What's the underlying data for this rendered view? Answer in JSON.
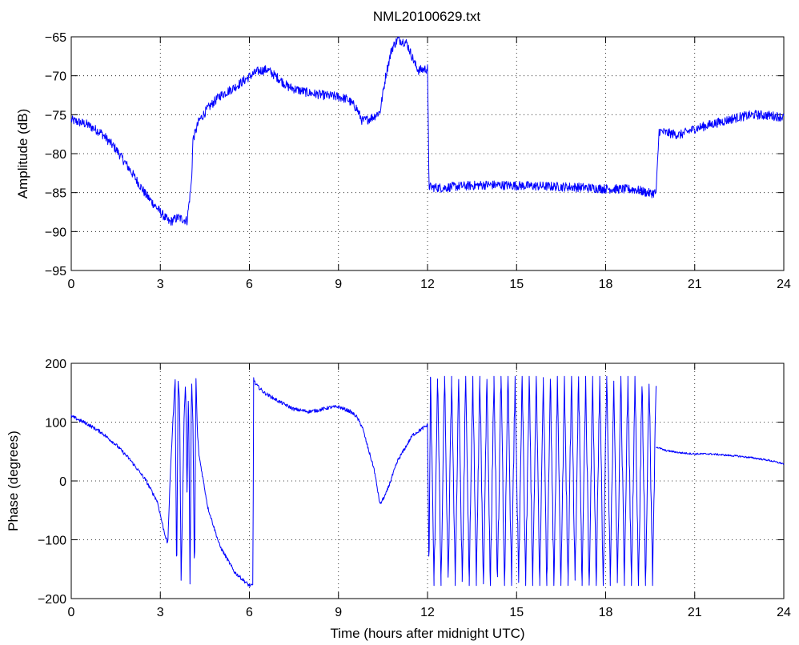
{
  "figure": {
    "title": "NML20100629.txt"
  },
  "colors": {
    "series": "#0000ff",
    "axes": "#000000",
    "background": "#ffffff"
  },
  "chart_data": [
    {
      "type": "line",
      "title": "NML20100629.txt",
      "xlabel": "",
      "ylabel": "Amplitude (dB)",
      "xlim": [
        0,
        24
      ],
      "ylim": [
        -95,
        -65
      ],
      "xticks": [
        0,
        3,
        6,
        9,
        12,
        15,
        18,
        21,
        24
      ],
      "yticks": [
        -95,
        -90,
        -85,
        -80,
        -75,
        -70,
        -65
      ],
      "xtick_labels": [
        "0",
        "3",
        "6",
        "9",
        "12",
        "15",
        "18",
        "21",
        "24"
      ],
      "ytick_labels": [
        "−95",
        "−90",
        "−85",
        "−80",
        "−75",
        "−70",
        "−65"
      ],
      "grid": true,
      "series": [
        {
          "noise": 0.6,
          "x": [
            0,
            0.5,
            1.0,
            1.5,
            2.0,
            2.5,
            3.0,
            3.3,
            3.6,
            3.9,
            4.0,
            4.05,
            4.1,
            4.3,
            4.6,
            5.0,
            5.5,
            6.0,
            6.3,
            6.6,
            7.0,
            7.3,
            7.6,
            8.0,
            8.5,
            9.0,
            9.3,
            9.6,
            9.8,
            10.0,
            10.2,
            10.4,
            10.6,
            10.8,
            11.0,
            11.3,
            11.6,
            11.7,
            12.0,
            12.05,
            12.1,
            12.5,
            13.0,
            14.0,
            15.0,
            16.0,
            17.0,
            18.0,
            19.0,
            19.5,
            19.7,
            19.8,
            20.0,
            20.5,
            21.0,
            22.0,
            22.5,
            23.0,
            23.5,
            24.0
          ],
          "y": [
            -75.7,
            -76.2,
            -77.3,
            -79.4,
            -82.2,
            -85.2,
            -87.5,
            -88.8,
            -88.2,
            -88.6,
            -85.3,
            -83.6,
            -78.2,
            -75.8,
            -74.2,
            -72.6,
            -71.5,
            -70.1,
            -69.4,
            -69.2,
            -70.4,
            -71.4,
            -71.8,
            -72.2,
            -72.5,
            -72.7,
            -73.0,
            -74.1,
            -75.8,
            -75.6,
            -75.2,
            -74.6,
            -69.8,
            -66.5,
            -65.3,
            -65.8,
            -68.7,
            -69.3,
            -69.1,
            -84.1,
            -84.3,
            -84.4,
            -84.2,
            -84.0,
            -84.1,
            -84.2,
            -84.3,
            -84.5,
            -84.6,
            -85.1,
            -85.0,
            -77.1,
            -77.3,
            -77.6,
            -76.8,
            -75.8,
            -75.3,
            -75.0,
            -75.1,
            -75.3
          ]
        }
      ]
    },
    {
      "type": "line",
      "title": "",
      "xlabel": "Time (hours after midnight UTC)",
      "ylabel": "Phase (degrees)",
      "xlim": [
        0,
        24
      ],
      "ylim": [
        -200,
        200
      ],
      "xticks": [
        0,
        3,
        6,
        9,
        12,
        15,
        18,
        21,
        24
      ],
      "yticks": [
        -200,
        -100,
        0,
        100,
        200
      ],
      "xtick_labels": [
        "0",
        "3",
        "6",
        "9",
        "12",
        "15",
        "18",
        "21",
        "24"
      ],
      "ytick_labels": [
        "−200",
        "−100",
        "0",
        "100",
        "200"
      ],
      "grid": true,
      "series": [
        {
          "noise": 3,
          "x": [
            0,
            0.5,
            1.0,
            1.5,
            2.0,
            2.5,
            2.9,
            3.1,
            3.25,
            3.35,
            3.5,
            3.55,
            3.6,
            3.65,
            3.7,
            3.8,
            3.85,
            3.9,
            3.95,
            4.0,
            4.05,
            4.1,
            4.15,
            4.2,
            4.25,
            4.3,
            4.6,
            5.0,
            5.5,
            6.0,
            6.12,
            6.14,
            6.2,
            6.5,
            7.0,
            7.5,
            8.0,
            8.3,
            8.7,
            9.0,
            9.2,
            9.4,
            9.6,
            9.8,
            10.0,
            10.2,
            10.4,
            10.6,
            11.0,
            11.5,
            12.0,
            12.05,
            12.1
          ],
          "y": [
            110,
            98,
            83,
            62,
            35,
            2,
            -35,
            -80,
            -108,
            28,
            175,
            -178,
            168,
            138,
            -172,
            105,
            170,
            -20,
            160,
            -178,
            175,
            95,
            -170,
            175,
            82,
            45,
            -45,
            -110,
            -155,
            -178,
            -178,
            175,
            165,
            150,
            135,
            122,
            118,
            120,
            125,
            126,
            122,
            118,
            110,
            92,
            55,
            20,
            -40,
            -22,
            35,
            78,
            95,
            -165,
            175
          ]
        },
        {
          "amplitude": 178,
          "noise": 20,
          "x_start": 12.1,
          "x_end": 19.7,
          "toggles": 64
        },
        {
          "noise": 1.5,
          "x": [
            19.7,
            20.0,
            20.5,
            21.0,
            21.5,
            22.0,
            22.5,
            23.0,
            23.5,
            24.0
          ],
          "y": [
            58,
            52,
            48,
            46,
            46,
            44,
            42,
            39,
            35,
            29
          ]
        }
      ]
    }
  ]
}
